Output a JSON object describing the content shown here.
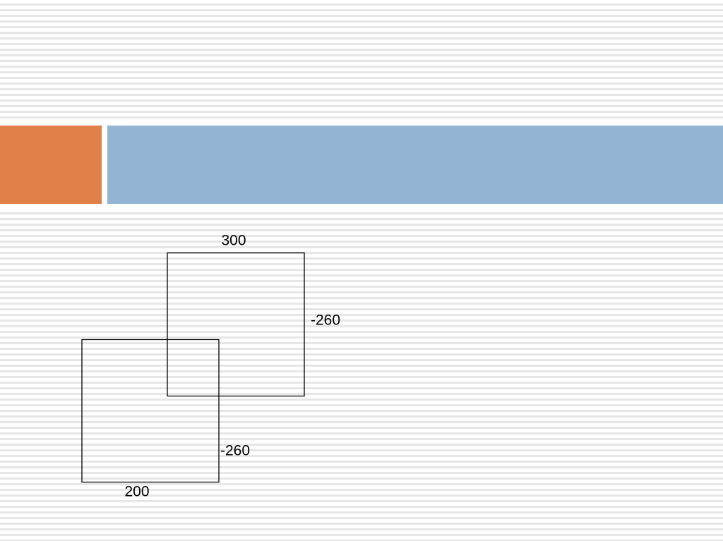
{
  "squares": [
    {
      "top_label": "300",
      "side_label": "-260"
    },
    {
      "side_label": "-260",
      "bottom_label": "200"
    }
  ]
}
